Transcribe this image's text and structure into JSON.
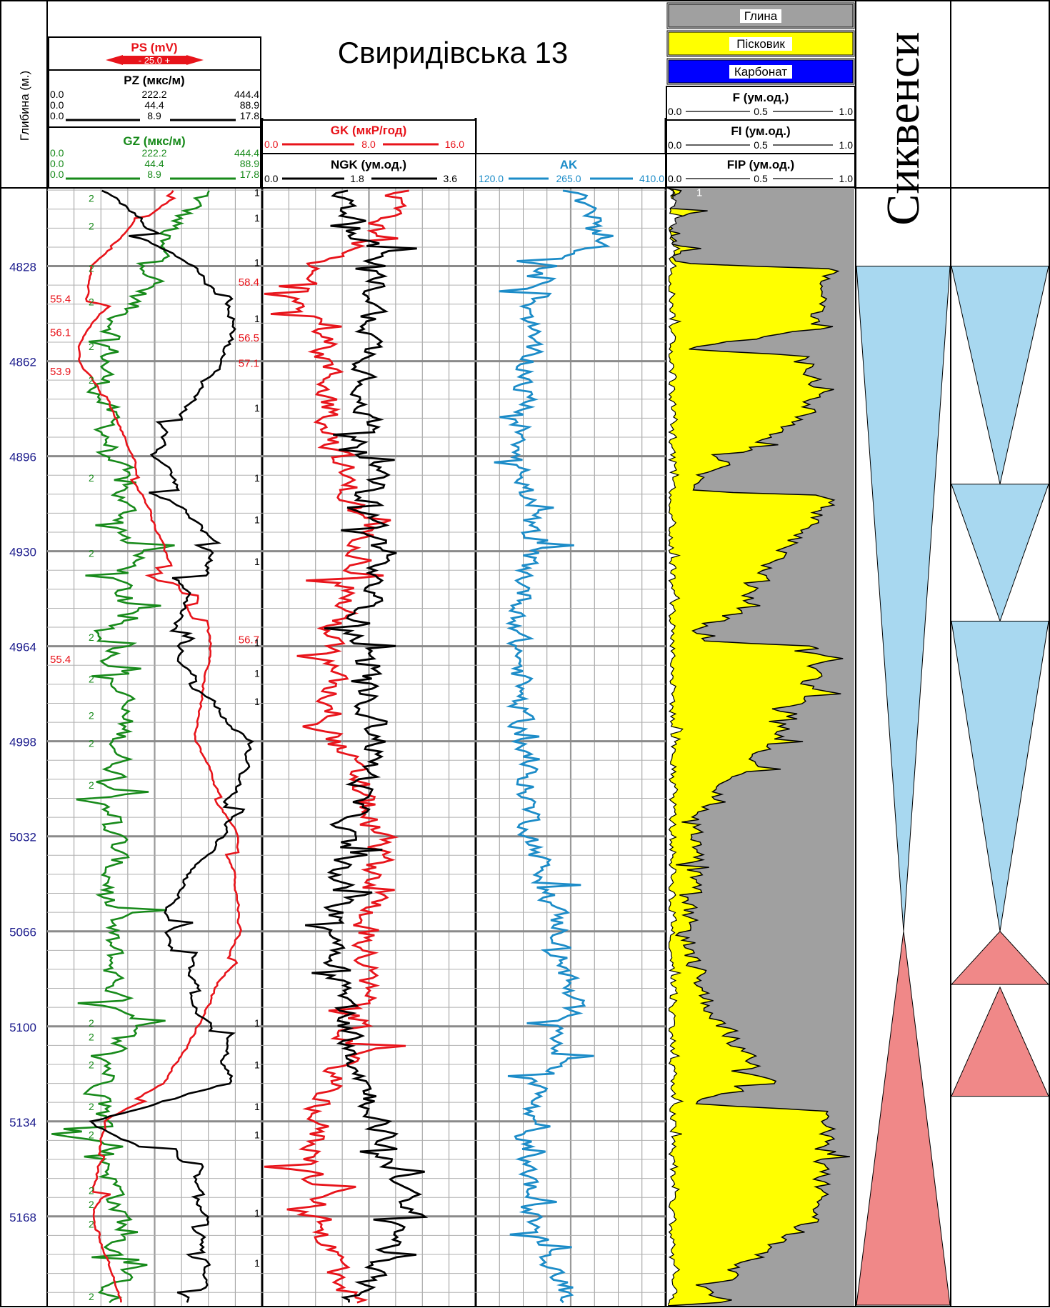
{
  "title": "Свиридівська 13",
  "depth_track": {
    "label": "Глибина (м.)",
    "ticks": [
      "4828",
      "4862",
      "4896",
      "4930",
      "4964",
      "4998",
      "5032",
      "5066",
      "5100",
      "5134",
      "5168"
    ]
  },
  "curves": {
    "ps": {
      "name": "PS (mV)",
      "scale_text": "- 25.0 +",
      "color": "#e8141b"
    },
    "pz": {
      "name": "PZ (мкс/м)",
      "color": "#000000",
      "rows": [
        [
          "0.0",
          "222.2",
          "444.4"
        ],
        [
          "0.0",
          "44.4",
          "88.9"
        ],
        [
          "0.0",
          "8.9",
          "17.8"
        ]
      ]
    },
    "gz": {
      "name": "GZ (мкс/м)",
      "color": "#178a1a",
      "rows": [
        [
          "0.0",
          "222.2",
          "444.4"
        ],
        [
          "0.0",
          "44.4",
          "88.9"
        ],
        [
          "0.0",
          "8.9",
          "17.8"
        ]
      ]
    },
    "gk": {
      "name": "GK (мкР/год)",
      "color": "#e8141b",
      "scale": [
        "0.0",
        "8.0",
        "16.0"
      ]
    },
    "ngk": {
      "name": "NGK (ум.од.)",
      "color": "#000000",
      "scale": [
        "0.0",
        "1.8",
        "3.6"
      ]
    },
    "ak": {
      "name": "AK",
      "color": "#1c8cc8",
      "scale": [
        "120.0",
        "265.0",
        "410.0"
      ]
    },
    "f": {
      "name": "F (ум.од.)",
      "scale": [
        "0.0",
        "0.5",
        "1.0"
      ]
    },
    "fi": {
      "name": "FI (ум.од.)",
      "scale": [
        "0.0",
        "0.5",
        "1.0"
      ]
    },
    "fip": {
      "name": "FIP (ум.од.)",
      "scale": [
        "0.0",
        "0.5",
        "1.0"
      ]
    }
  },
  "ps_annotations": [
    "55.4",
    "56.1",
    "53.9",
    "55.4"
  ],
  "ps_right_annotations": [
    "58.4",
    "56.5",
    "57.1",
    "56.7"
  ],
  "lithology_legend": [
    {
      "name": "Глина",
      "color": "#a0a0a0"
    },
    {
      "name": "Пісковик",
      "color": "#ffff00"
    },
    {
      "name": "Карбонат",
      "color": "#0000ff"
    }
  ],
  "sequences": {
    "title": "Сиквенси",
    "blue_color": "#a8d8f0",
    "red_color": "#f08888"
  },
  "curve_markers": {
    "one": "1",
    "two": "2"
  }
}
